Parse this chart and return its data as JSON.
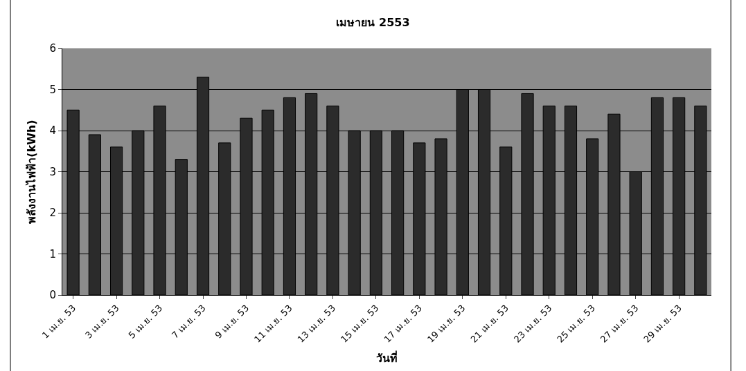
{
  "chart_data": {
    "type": "bar",
    "title": "เมษายน 2553",
    "xlabel": "วันที่",
    "ylabel": "พลังงานไฟฟ้า(kWh)",
    "categories": [
      "1 เม.ย. 53",
      null,
      "3 เม.ย. 53",
      null,
      "5 เม.ย. 53",
      null,
      "7 เม.ย. 53",
      null,
      "9 เม.ย. 53",
      null,
      "11 เม.ย. 53",
      null,
      "13 เม.ย. 53",
      null,
      "15 เม.ย. 53",
      null,
      "17 เม.ย. 53",
      null,
      "19 เม.ย. 53",
      null,
      "21 เม.ย. 53",
      null,
      "23 เม.ย. 53",
      null,
      "25 เม.ย. 53",
      null,
      "27 เม.ย. 53",
      null,
      "29 เม.ย. 53",
      null
    ],
    "values": [
      4.5,
      3.9,
      3.6,
      4.0,
      4.6,
      3.3,
      5.3,
      3.7,
      4.3,
      4.5,
      4.8,
      4.9,
      4.6,
      4.0,
      4.0,
      4.0,
      3.7,
      3.8,
      5.0,
      5.0,
      3.6,
      4.9,
      4.6,
      4.6,
      3.8,
      4.4,
      3.0,
      4.8,
      4.8,
      4.6
    ],
    "color": "#2b2b2b",
    "ylim": [
      0,
      6
    ],
    "yticks": [
      0,
      1,
      2,
      3,
      4,
      5,
      6
    ],
    "grid": "y"
  }
}
